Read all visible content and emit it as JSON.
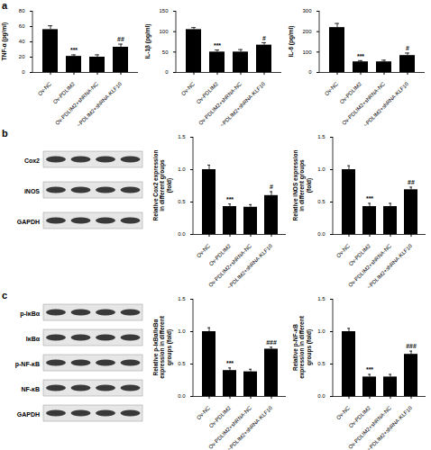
{
  "chart_data": [
    {
      "type": "bar",
      "y_label": "TNF-α (pg/ml)",
      "categories": [
        "Ov-NC",
        "Ov-PDLIM2",
        "Ov-PDLIM2+shRNA-NC",
        "Ov-PDLIM2+shRNA-KLF10"
      ],
      "values": [
        56,
        21,
        20,
        33
      ],
      "errors": [
        5,
        2,
        3,
        4
      ],
      "annotations": [
        null,
        "***",
        null,
        "##"
      ],
      "color": "#000000",
      "ylim": [
        0,
        80
      ],
      "yticks": [
        0,
        20,
        40,
        60,
        80
      ]
    },
    {
      "type": "bar",
      "y_label": "IL-1β (pg/ml)",
      "categories": [
        "Ov-NC",
        "Ov-PDLIM2",
        "Ov-PDLIM2+shRNA-NC",
        "Ov-PDLIM2+shRNA-KLF10"
      ],
      "values": [
        105,
        50,
        50,
        67
      ],
      "errors": [
        5,
        5,
        6,
        6
      ],
      "annotations": [
        null,
        "***",
        null,
        "#"
      ],
      "color": "#000000",
      "ylim": [
        0,
        150
      ],
      "yticks": [
        0,
        50,
        100,
        150
      ]
    },
    {
      "type": "bar",
      "y_label": "IL-6 (pg/ml)",
      "categories": [
        "Ov-NC",
        "Ov-PDLIM2",
        "Ov-PDLIM2+shRNA-NC",
        "Ov-PDLIM2+shRNA-KLF10"
      ],
      "values": [
        220,
        52,
        52,
        83
      ],
      "errors": [
        20,
        6,
        8,
        12
      ],
      "annotations": [
        null,
        "***",
        null,
        "#"
      ],
      "color": "#000000",
      "ylim": [
        0,
        300
      ],
      "yticks": [
        0,
        100,
        200,
        300
      ]
    },
    {
      "type": "bar",
      "y_label": "Relative Cox2 expression in different groups (fold)",
      "categories": [
        "Ov-NC",
        "Ov-PDLIM2",
        "Ov-PDLIM2+shRNA-NC",
        "Ov-PDLIM2+shRNA-KLF10"
      ],
      "values": [
        1.0,
        0.43,
        0.42,
        0.6
      ],
      "errors": [
        0.07,
        0.04,
        0.04,
        0.06
      ],
      "annotations": [
        null,
        "***",
        null,
        "#"
      ],
      "color": "#000000",
      "ylim": [
        0,
        1.5
      ],
      "yticks": [
        {
          "value": 0,
          "label": "0.0"
        },
        0.5,
        {
          "value": 1,
          "label": "1.0"
        },
        1.5
      ]
    },
    {
      "type": "bar",
      "y_label": "Relative iNOS expression in different groups (fold)",
      "categories": [
        "Ov-NC",
        "Ov-PDLIM2",
        "Ov-PDLIM2+shRNA-NC",
        "Ov-PDLIM2+shRNA-KLF10"
      ],
      "values": [
        1.0,
        0.43,
        0.43,
        0.69
      ],
      "errors": [
        0.06,
        0.05,
        0.05,
        0.04
      ],
      "annotations": [
        null,
        "***",
        null,
        "##"
      ],
      "color": "#000000",
      "ylim": [
        0,
        1.5
      ],
      "yticks": [
        {
          "value": 0,
          "label": "0.0"
        },
        0.5,
        {
          "value": 1,
          "label": "1.0"
        },
        1.5
      ]
    },
    {
      "type": "bar",
      "y_label": "Relative p-IκBα/IκBα expression in different groups (fold)",
      "categories": [
        "Ov-NC",
        "Ov-PDLIM2",
        "Ov-PDLIM2+shRNA-NC",
        "Ov-PDLIM2+shRNA-KLF10"
      ],
      "values": [
        1.0,
        0.4,
        0.38,
        0.73
      ],
      "errors": [
        0.06,
        0.04,
        0.04,
        0.03
      ],
      "annotations": [
        null,
        "***",
        null,
        "###"
      ],
      "color": "#000000",
      "ylim": [
        0,
        1.5
      ],
      "yticks": [
        {
          "value": 0,
          "label": "0.0"
        },
        0.5,
        {
          "value": 1,
          "label": "1.0"
        },
        1.5
      ]
    },
    {
      "type": "bar",
      "y_label": "Relative p-NF-κB expression in different groups (fold)",
      "categories": [
        "Ov-NC",
        "Ov-PDLIM2",
        "Ov-PDLIM2+shRNA-NC",
        "Ov-PDLIM2+shRNA-KLF10"
      ],
      "values": [
        1.0,
        0.3,
        0.3,
        0.65
      ],
      "errors": [
        0.05,
        0.04,
        0.04,
        0.05
      ],
      "annotations": [
        null,
        "***",
        null,
        "###"
      ],
      "color": "#000000",
      "ylim": [
        0,
        1.5
      ],
      "yticks": [
        {
          "value": 0,
          "label": "0.0"
        },
        0.5,
        {
          "value": 1,
          "label": "1.0"
        },
        1.5
      ]
    }
  ],
  "panels": [
    {
      "label": "a"
    },
    {
      "label": "b",
      "blot_labels": [
        "Cox2",
        "iNOS",
        "GAPDH"
      ]
    },
    {
      "label": "c",
      "blot_labels": [
        "p-IκBα",
        "IκBα",
        "p-NF-κB",
        "NF-κB",
        "GAPDH"
      ]
    }
  ]
}
